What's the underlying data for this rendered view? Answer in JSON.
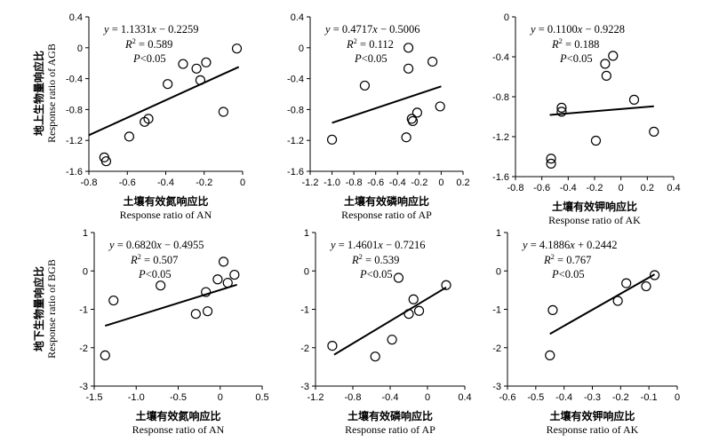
{
  "row_labels": [
    {
      "cn": "地上生物量响应比",
      "en": "Response ratio of AGB"
    },
    {
      "cn": "地下生物量响应比",
      "en": "Response ratio of BGB"
    }
  ],
  "chart_data": [
    {
      "type": "scatter",
      "xlabel_cn": "土壤有效氮响应比",
      "xlabel_en": "Response ratio of AN",
      "xlim": [
        -0.8,
        0
      ],
      "ylim": [
        -1.6,
        0.4
      ],
      "xticks": [
        "-0.8",
        "-0.6",
        "-0.4",
        "-0.2",
        "0"
      ],
      "yticks": [
        "-1.6",
        "-1.2",
        "-0.8",
        "-0.4",
        "0",
        "0.4"
      ],
      "equation": {
        "slope": "1.1331",
        "intercept": "0.2259",
        "sign": "−"
      },
      "r2": "0.589",
      "p": "<0.05",
      "fit": {
        "slope": 1.1331,
        "intercept": -0.2259,
        "x_range": [
          -0.8,
          -0.02
        ]
      },
      "points": [
        [
          -0.72,
          -1.42
        ],
        [
          -0.71,
          -1.47
        ],
        [
          -0.59,
          -1.15
        ],
        [
          -0.51,
          -0.96
        ],
        [
          -0.49,
          -0.92
        ],
        [
          -0.39,
          -0.47
        ],
        [
          -0.31,
          -0.21
        ],
        [
          -0.24,
          -0.27
        ],
        [
          -0.22,
          -0.42
        ],
        [
          -0.19,
          -0.19
        ],
        [
          -0.1,
          -0.83
        ],
        [
          -0.03,
          -0.01
        ]
      ]
    },
    {
      "type": "scatter",
      "xlabel_cn": "土壤有效磷响应比",
      "xlabel_en": "Response ratio of AP",
      "xlim": [
        -1.2,
        0.2
      ],
      "ylim": [
        -1.6,
        0.4
      ],
      "xticks": [
        "-1.2",
        "-1.0",
        "-0.8",
        "-0.6",
        "-0.4",
        "-0.2",
        "0",
        "0.2"
      ],
      "yticks": [
        "-1.6",
        "-1.2",
        "-0.8",
        "-0.4",
        "0",
        "0.4"
      ],
      "equation": {
        "slope": "0.4717",
        "intercept": "0.5006",
        "sign": "−"
      },
      "r2": "0.112",
      "p": "<0.05",
      "fit": {
        "slope": 0.4717,
        "intercept": -0.5006,
        "x_range": [
          -1.0,
          0.0
        ]
      },
      "points": [
        [
          -1.0,
          -1.19
        ],
        [
          -0.7,
          -0.49
        ],
        [
          -0.32,
          -1.16
        ],
        [
          -0.3,
          0.0
        ],
        [
          -0.3,
          -0.27
        ],
        [
          -0.27,
          -0.92
        ],
        [
          -0.26,
          -0.95
        ],
        [
          -0.22,
          -0.84
        ],
        [
          -0.08,
          -0.18
        ],
        [
          -0.01,
          -0.76
        ]
      ]
    },
    {
      "type": "scatter",
      "xlabel_cn": "土壤有效钾响应比",
      "xlabel_en": "Response ratio of AK",
      "xlim": [
        -0.8,
        0.4
      ],
      "ylim": [
        -1.6,
        0
      ],
      "xticks": [
        "-0.8",
        "-0.6",
        "-0.4",
        "-0.2",
        "0",
        "0.2",
        "0.4"
      ],
      "yticks": [
        "-1.6",
        "-1.2",
        "-0.8",
        "-0.4",
        "0"
      ],
      "equation": {
        "slope": "0.1100",
        "intercept": "0.9228",
        "sign": "−"
      },
      "r2": "0.188",
      "p": "<0.05",
      "fit": {
        "slope": 0.11,
        "intercept": -0.9228,
        "x_range": [
          -0.54,
          0.25
        ]
      },
      "points": [
        [
          -0.53,
          -1.42
        ],
        [
          -0.53,
          -1.47
        ],
        [
          -0.45,
          -0.91
        ],
        [
          -0.45,
          -0.95
        ],
        [
          -0.19,
          -1.24
        ],
        [
          -0.12,
          -0.47
        ],
        [
          -0.11,
          -0.59
        ],
        [
          -0.06,
          -0.39
        ],
        [
          0.1,
          -0.83
        ],
        [
          0.25,
          -1.15
        ]
      ]
    },
    {
      "type": "scatter",
      "xlabel_cn": "土壤有效氮响应比",
      "xlabel_en": "Response ratio of AN",
      "xlim": [
        -1.5,
        0.5
      ],
      "ylim": [
        -3,
        1
      ],
      "xticks": [
        "-1.5",
        "-1.0",
        "-0.5",
        "0",
        "0.5"
      ],
      "yticks": [
        "-3",
        "-2",
        "-1",
        "0",
        "1"
      ],
      "equation": {
        "slope": "0.6820",
        "intercept": "0.4955",
        "sign": "−"
      },
      "r2": "0.507",
      "p": "<0.05",
      "fit": {
        "slope": 0.682,
        "intercept": -0.4955,
        "x_range": [
          -1.37,
          0.2
        ]
      },
      "points": [
        [
          -1.37,
          -2.2
        ],
        [
          -1.27,
          -0.77
        ],
        [
          -0.71,
          -0.38
        ],
        [
          -0.29,
          -1.12
        ],
        [
          -0.17,
          -0.55
        ],
        [
          -0.15,
          -1.05
        ],
        [
          -0.03,
          -0.22
        ],
        [
          0.04,
          0.24
        ],
        [
          0.09,
          -0.31
        ],
        [
          0.17,
          -0.1
        ]
      ]
    },
    {
      "type": "scatter",
      "xlabel_cn": "土壤有效磷响应比",
      "xlabel_en": "Response ratio of AP",
      "xlim": [
        -1.2,
        0.4
      ],
      "ylim": [
        -3,
        1
      ],
      "xticks": [
        "-1.2",
        "-0.8",
        "-0.4",
        "0",
        "0.4"
      ],
      "yticks": [
        "-3",
        "-2",
        "-1",
        "0",
        "1"
      ],
      "equation": {
        "slope": "1.4601",
        "intercept": "0.7216",
        "sign": "−"
      },
      "r2": "0.539",
      "p": "<0.05",
      "fit": {
        "slope": 1.4601,
        "intercept": -0.7216,
        "x_range": [
          -1.0,
          0.2
        ]
      },
      "points": [
        [
          -1.02,
          -1.95
        ],
        [
          -0.56,
          -2.23
        ],
        [
          -0.38,
          -1.79
        ],
        [
          -0.31,
          -0.18
        ],
        [
          -0.2,
          -1.12
        ],
        [
          -0.15,
          -0.74
        ],
        [
          -0.09,
          -1.04
        ],
        [
          0.2,
          -0.37
        ]
      ]
    },
    {
      "type": "scatter",
      "xlabel_cn": "土壤有效钾响应比",
      "xlabel_en": "Response ratio of AK",
      "xlim": [
        -0.6,
        0
      ],
      "ylim": [
        -3,
        1
      ],
      "xticks": [
        "-0.6",
        "-0.5",
        "-0.4",
        "-0.3",
        "-0.2",
        "-0.1",
        "0"
      ],
      "yticks": [
        "-3",
        "-2",
        "-1",
        "0",
        "1"
      ],
      "equation": {
        "slope": "4.1886",
        "intercept": "0.2442",
        "sign": "+"
      },
      "r2": "0.767",
      "p": "<0.05",
      "fit": {
        "slope": 4.1886,
        "intercept": 0.2442,
        "x_range": [
          -0.45,
          -0.08
        ]
      },
      "points": [
        [
          -0.45,
          -2.2
        ],
        [
          -0.44,
          -1.02
        ],
        [
          -0.21,
          -0.78
        ],
        [
          -0.18,
          -0.32
        ],
        [
          -0.11,
          -0.4
        ],
        [
          -0.08,
          -0.11
        ]
      ]
    }
  ]
}
